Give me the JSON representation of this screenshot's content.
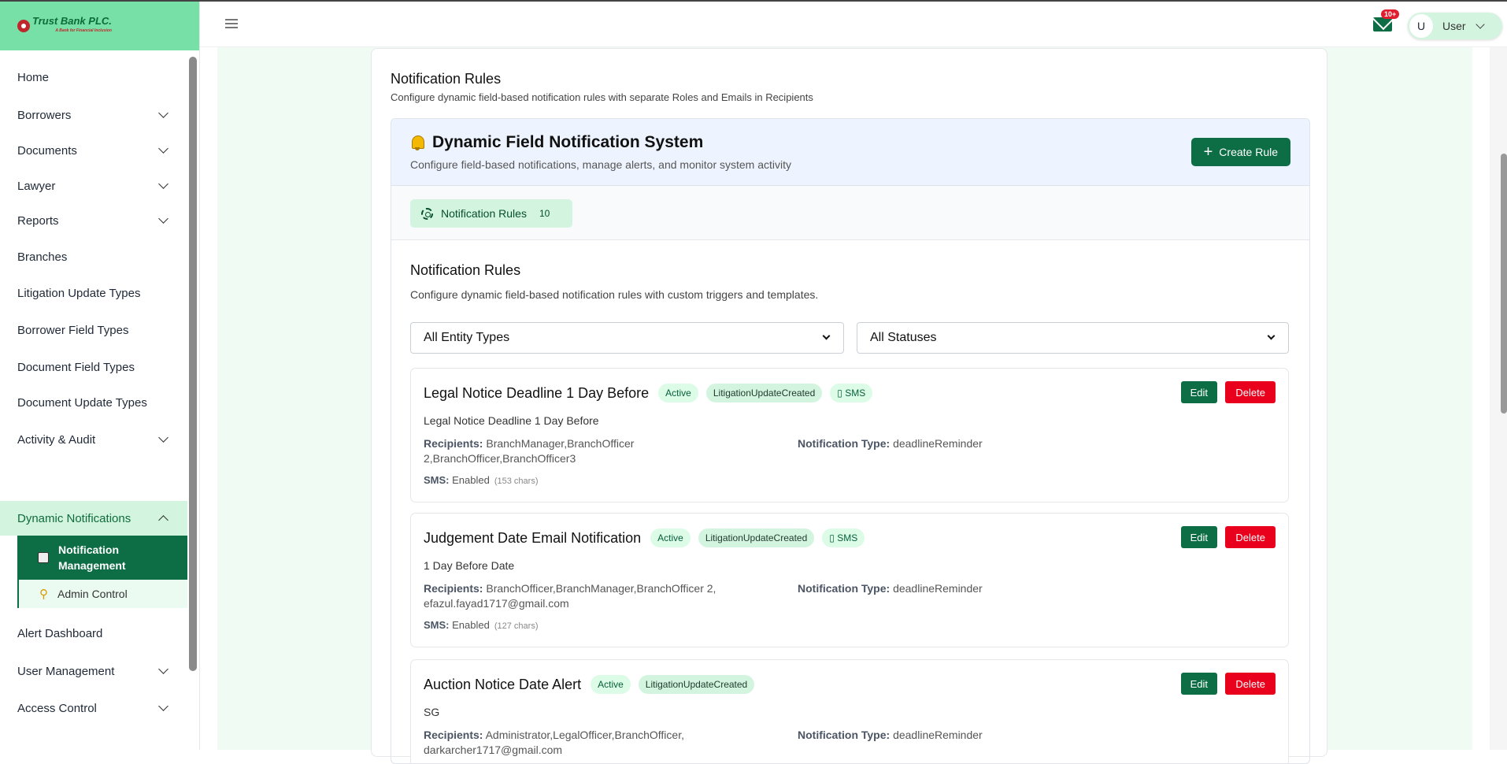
{
  "brand": {
    "name": "Trust Bank PLC.",
    "tagline": "A Bank for Financial Inclusion",
    "accent": "#0d6e45",
    "danger": "#e8001c"
  },
  "sidebar": {
    "items": [
      {
        "label": "Home",
        "expandable": false
      },
      {
        "label": "Borrowers",
        "expandable": true
      },
      {
        "label": "Documents",
        "expandable": true
      },
      {
        "label": "Lawyer",
        "expandable": true
      },
      {
        "label": "Reports",
        "expandable": true
      },
      {
        "label": "Branches",
        "expandable": false
      },
      {
        "label": "Litigation Update Types",
        "expandable": false
      },
      {
        "label": "Borrower Field Types",
        "expandable": false
      },
      {
        "label": "Document Field Types",
        "expandable": false
      },
      {
        "label": "Document Update Types",
        "expandable": false
      },
      {
        "label": "Activity & Audit",
        "expandable": true
      },
      {
        "label": "Dynamic Notifications",
        "expandable": true,
        "open": true
      },
      {
        "label": "Alert Dashboard",
        "expandable": false
      },
      {
        "label": "User Management",
        "expandable": true
      },
      {
        "label": "Access Control",
        "expandable": true
      }
    ],
    "subitems": [
      {
        "label": "Notification Management",
        "icon": "grid-icon",
        "active": true
      },
      {
        "label": "Admin Control",
        "icon": "key-icon"
      }
    ]
  },
  "topbar": {
    "notifications": "10+",
    "user_initial": "U",
    "user_name": "User"
  },
  "page": {
    "title": "Notification Rules",
    "subtitle": "Configure dynamic field-based notification rules with separate Roles and Emails in Recipients"
  },
  "system": {
    "title": "Dynamic Field Notification System",
    "subtitle": "Configure field-based notifications, manage alerts, and monitor system activity",
    "create_label": "Create Rule"
  },
  "tab": {
    "label": "Notification Rules",
    "count": "10"
  },
  "section": {
    "title": "Notification Rules",
    "subtitle": "Configure dynamic field-based notification rules with custom triggers and templates."
  },
  "filters": {
    "entity": "All Entity Types",
    "status": "All Statuses"
  },
  "labels": {
    "recipients": "Recipients:",
    "type": "Notification Type:",
    "sms": "SMS:",
    "edit": "Edit",
    "delete": "Delete"
  },
  "rules": [
    {
      "name": "Legal Notice Deadline 1 Day Before",
      "status": "Active",
      "event": "LitigationUpdateCreated",
      "channel": "▯ SMS",
      "description": "Legal Notice Deadline 1 Day Before",
      "recipients": "BranchManager,BranchOfficer 2,BranchOfficer,BranchOfficer3",
      "type": "deadlineReminder",
      "sms": "Enabled",
      "sms_chars": "(153 chars)"
    },
    {
      "name": "Judgement Date Email Notification",
      "status": "Active",
      "event": "LitigationUpdateCreated",
      "channel": "▯ SMS",
      "description": "1 Day Before Date",
      "recipients": "BranchOfficer,BranchManager,BranchOfficer 2, efazul.fayad1717@gmail.com",
      "type": "deadlineReminder",
      "sms": "Enabled",
      "sms_chars": "(127 chars)"
    },
    {
      "name": "Auction Notice Date Alert",
      "status": "Active",
      "event": "LitigationUpdateCreated",
      "description": "SG",
      "recipients": "Administrator,LegalOfficer,BranchOfficer, darkarcher1717@gmail.com",
      "type": "deadlineReminder"
    }
  ]
}
